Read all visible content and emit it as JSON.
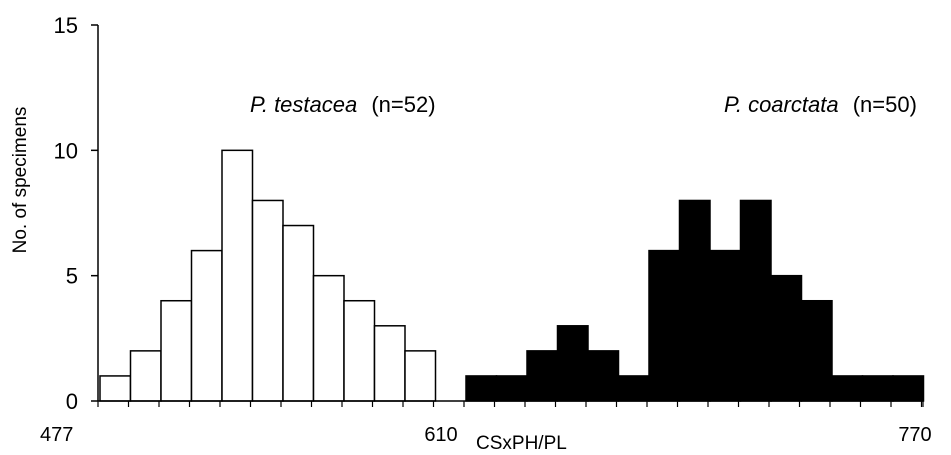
{
  "chart_data": {
    "type": "bar",
    "xlabel": "CSxPH/PL",
    "ylabel": "No. of specimens",
    "ylim": [
      0,
      15
    ],
    "yticks": [
      "0",
      "5",
      "10",
      "15"
    ],
    "x_tick_labels": [
      "477",
      "610",
      "770"
    ],
    "grid": false,
    "legend": "none",
    "series": [
      {
        "name": "P. testacea",
        "label_species": "P. testacea",
        "label_count": "(n=52)",
        "color": "#ffffff",
        "stroke": "#000000",
        "values": [
          1,
          2,
          4,
          6,
          10,
          8,
          7,
          5,
          4,
          3,
          2
        ]
      },
      {
        "name": "P. coarctata",
        "label_species": "P. coarctata",
        "label_count": "(n=50)",
        "color": "#000000",
        "stroke": "#000000",
        "values": [
          1,
          1,
          2,
          3,
          2,
          1,
          6,
          8,
          6,
          8,
          5,
          4,
          1,
          1,
          1
        ]
      }
    ]
  }
}
